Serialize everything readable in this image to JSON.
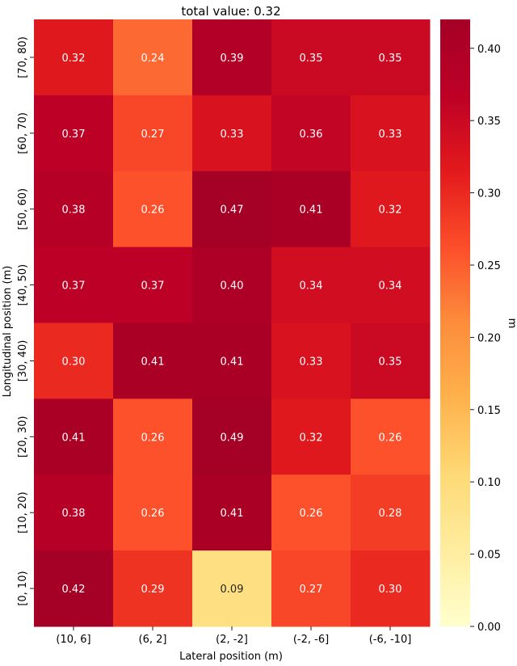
{
  "chart_data": {
    "type": "heatmap",
    "title": "total value: 0.32",
    "xlabel": "Lateral position (m)",
    "ylabel": "Longitudinal position (m)",
    "x_categories": [
      "(10, 6]",
      "(6, 2]",
      "(2, -2]",
      "(-2, -6]",
      "(-6, -10]"
    ],
    "y_categories": [
      "[70, 80)",
      "[60, 70)",
      "[50, 60)",
      "[40, 50)",
      "[30, 40)",
      "[20, 30)",
      "[10, 20)",
      "[0, 10)"
    ],
    "values": [
      [
        0.32,
        0.24,
        0.39,
        0.35,
        0.35
      ],
      [
        0.37,
        0.27,
        0.33,
        0.36,
        0.33
      ],
      [
        0.38,
        0.26,
        0.47,
        0.41,
        0.32
      ],
      [
        0.37,
        0.37,
        0.4,
        0.34,
        0.34
      ],
      [
        0.3,
        0.41,
        0.41,
        0.33,
        0.35
      ],
      [
        0.41,
        0.26,
        0.49,
        0.32,
        0.26
      ],
      [
        0.38,
        0.26,
        0.41,
        0.26,
        0.28
      ],
      [
        0.42,
        0.29,
        0.09,
        0.27,
        0.3
      ]
    ],
    "colorbar": {
      "label": "m",
      "vmin": 0.0,
      "vmax": 0.42,
      "ticks": [
        "0.00",
        "0.05",
        "0.10",
        "0.15",
        "0.20",
        "0.25",
        "0.30",
        "0.35",
        "0.40"
      ]
    },
    "colormap": [
      "#ffffcc",
      "#ffeda0",
      "#fed976",
      "#feb24c",
      "#fd8d3c",
      "#fc4e2a",
      "#e31a1c",
      "#bd0026",
      "#a50026"
    ]
  }
}
